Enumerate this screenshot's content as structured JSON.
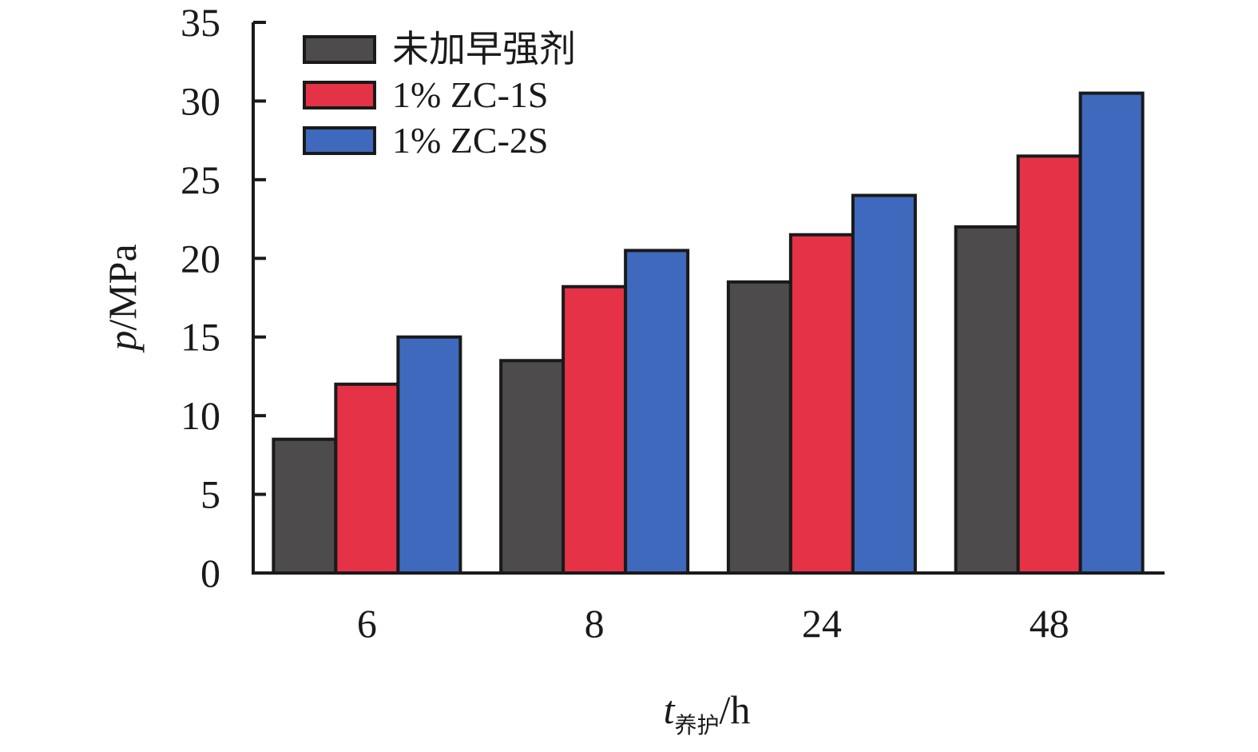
{
  "chart_data": {
    "type": "bar",
    "categories": [
      "6",
      "8",
      "24",
      "48"
    ],
    "series": [
      {
        "name": "未加早强剂",
        "color": "#4d4b4c",
        "values": [
          8.5,
          13.5,
          18.5,
          22.0
        ]
      },
      {
        "name": "1% ZC-1S",
        "color": "#e63246",
        "values": [
          12.0,
          18.2,
          21.5,
          26.5
        ]
      },
      {
        "name": "1% ZC-2S",
        "color": "#3f69bd",
        "values": [
          15.0,
          20.5,
          24.0,
          30.5
        ]
      }
    ],
    "ylim": [
      0,
      35
    ],
    "yticks": [
      0,
      5,
      10,
      15,
      20,
      25,
      30,
      35
    ],
    "ylabel": {
      "italic": "p",
      "rest": "/MPa"
    },
    "xlabel": {
      "italic": "t",
      "subscript": "养护",
      "rest": "/h"
    },
    "legend": "top-left",
    "grid": false
  }
}
